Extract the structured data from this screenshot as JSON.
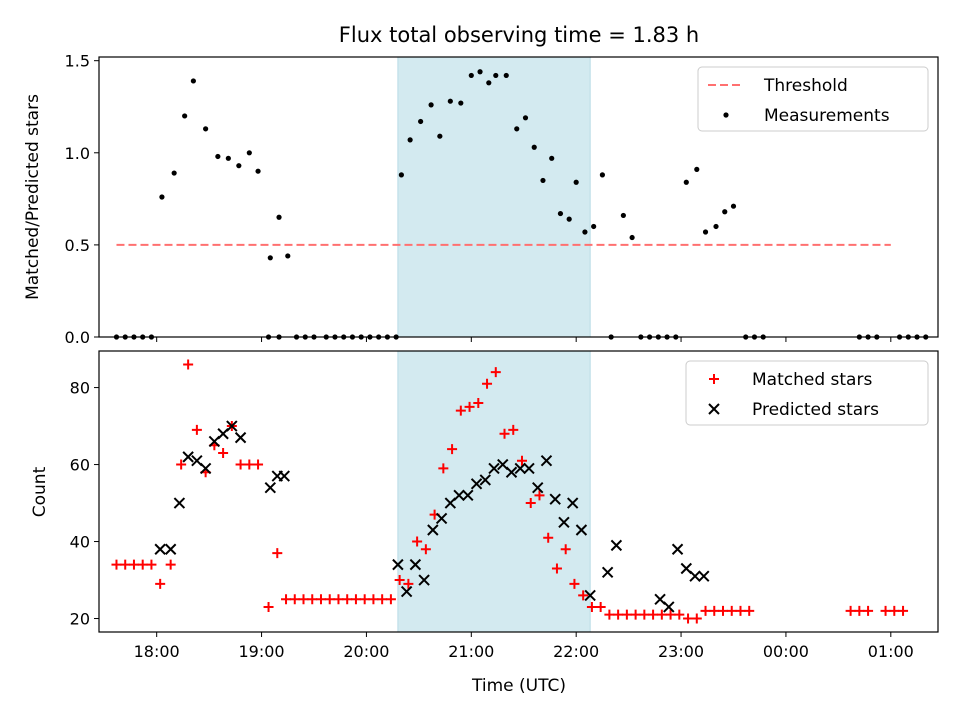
{
  "chart_data": [
    {
      "type": "scatter",
      "title": "Flux total observing time = 1.83 h",
      "xlabel": "",
      "ylabel": "Matched/Predicted stars",
      "xlim": [
        "17:27",
        "01:27"
      ],
      "ylim": [
        0,
        1.52
      ],
      "yticks": [
        "0.0",
        "0.5",
        "1.0",
        "1.5"
      ],
      "highlight_span": [
        "20:18",
        "22:08"
      ],
      "highlight_color": "#d3eaf0",
      "legend_position": "top-right",
      "series": [
        {
          "name": "Threshold",
          "kind": "dashed-line",
          "color": "#ff7070",
          "points": [
            [
              "17:37",
              0.5
            ],
            [
              "01:00",
              0.5
            ]
          ]
        },
        {
          "name": "Measurements",
          "kind": "dot",
          "color": "#000000",
          "points": [
            [
              "17:37",
              0
            ],
            [
              "17:42",
              0
            ],
            [
              "17:47",
              0
            ],
            [
              "17:52",
              0
            ],
            [
              "17:57",
              0
            ],
            [
              "18:03",
              0.76
            ],
            [
              "18:10",
              0.89
            ],
            [
              "18:16",
              1.2
            ],
            [
              "18:21",
              1.39
            ],
            [
              "18:28",
              1.13
            ],
            [
              "18:35",
              0.98
            ],
            [
              "18:41",
              0.97
            ],
            [
              "18:47",
              0.93
            ],
            [
              "18:53",
              1.0
            ],
            [
              "18:58",
              0.9
            ],
            [
              "19:04",
              0
            ],
            [
              "19:10",
              0
            ],
            [
              "19:05",
              0.43
            ],
            [
              "19:10",
              0.65
            ],
            [
              "19:15",
              0.44
            ],
            [
              "19:20",
              0
            ],
            [
              "19:25",
              0
            ],
            [
              "19:30",
              0
            ],
            [
              "19:37",
              0
            ],
            [
              "19:42",
              0
            ],
            [
              "19:47",
              0
            ],
            [
              "19:52",
              0
            ],
            [
              "19:57",
              0
            ],
            [
              "20:02",
              0
            ],
            [
              "20:07",
              0
            ],
            [
              "20:12",
              0
            ],
            [
              "20:17",
              0
            ],
            [
              "20:20",
              0.88
            ],
            [
              "20:25",
              1.07
            ],
            [
              "20:31",
              1.17
            ],
            [
              "20:37",
              1.26
            ],
            [
              "20:42",
              1.09
            ],
            [
              "20:48",
              1.28
            ],
            [
              "20:54",
              1.27
            ],
            [
              "21:00",
              1.42
            ],
            [
              "21:05",
              1.44
            ],
            [
              "21:10",
              1.38
            ],
            [
              "21:14",
              1.42
            ],
            [
              "21:20",
              1.42
            ],
            [
              "21:26",
              1.13
            ],
            [
              "21:31",
              1.19
            ],
            [
              "21:36",
              1.03
            ],
            [
              "21:41",
              0.85
            ],
            [
              "21:46",
              0.97
            ],
            [
              "21:51",
              0.67
            ],
            [
              "21:56",
              0.64
            ],
            [
              "22:00",
              0.84
            ],
            [
              "22:05",
              0.57
            ],
            [
              "22:10",
              0.6
            ],
            [
              "22:15",
              0.88
            ],
            [
              "22:20",
              0
            ],
            [
              "22:27",
              0.66
            ],
            [
              "22:32",
              0.54
            ],
            [
              "22:37",
              0
            ],
            [
              "22:42",
              0
            ],
            [
              "22:47",
              0
            ],
            [
              "22:52",
              0
            ],
            [
              "22:57",
              0
            ],
            [
              "23:03",
              0.84
            ],
            [
              "23:09",
              0.91
            ],
            [
              "23:14",
              0.57
            ],
            [
              "23:20",
              0.6
            ],
            [
              "23:25",
              0.68
            ],
            [
              "23:30",
              0.71
            ],
            [
              "23:37",
              0
            ],
            [
              "23:42",
              0
            ],
            [
              "23:47",
              0
            ],
            [
              "00:42",
              0
            ],
            [
              "00:47",
              0
            ],
            [
              "00:52",
              0
            ],
            [
              "01:05",
              0
            ],
            [
              "01:10",
              0
            ],
            [
              "01:15",
              0
            ],
            [
              "01:20",
              0
            ]
          ]
        }
      ]
    },
    {
      "type": "scatter",
      "title": "",
      "xlabel": "Time (UTC)",
      "ylabel": "Count",
      "xlim": [
        "17:27",
        "01:27"
      ],
      "ylim": [
        16.5,
        89.5
      ],
      "yticks": [
        "20",
        "40",
        "60",
        "80"
      ],
      "xticks": [
        "18:00",
        "19:00",
        "20:00",
        "21:00",
        "22:00",
        "23:00",
        "00:00",
        "01:00"
      ],
      "highlight_span": [
        "20:18",
        "22:08"
      ],
      "highlight_color": "#d3eaf0",
      "legend_position": "top-right",
      "series": [
        {
          "name": "Matched stars",
          "kind": "plus",
          "color": "#ff0000",
          "points": [
            [
              "17:37",
              34
            ],
            [
              "17:42",
              34
            ],
            [
              "17:47",
              34
            ],
            [
              "17:52",
              34
            ],
            [
              "17:57",
              34
            ],
            [
              "18:02",
              29
            ],
            [
              "18:08",
              34
            ],
            [
              "18:14",
              60
            ],
            [
              "18:18",
              86
            ],
            [
              "18:23",
              69
            ],
            [
              "18:28",
              58
            ],
            [
              "18:33",
              65
            ],
            [
              "18:38",
              63
            ],
            [
              "18:43",
              70
            ],
            [
              "18:48",
              60
            ],
            [
              "18:53",
              60
            ],
            [
              "18:58",
              60
            ],
            [
              "19:04",
              23
            ],
            [
              "19:09",
              37
            ],
            [
              "19:14",
              25
            ],
            [
              "19:19",
              25
            ],
            [
              "19:24",
              25
            ],
            [
              "19:29",
              25
            ],
            [
              "19:34",
              25
            ],
            [
              "19:39",
              25
            ],
            [
              "19:44",
              25
            ],
            [
              "19:49",
              25
            ],
            [
              "19:54",
              25
            ],
            [
              "19:59",
              25
            ],
            [
              "20:04",
              25
            ],
            [
              "20:09",
              25
            ],
            [
              "20:14",
              25
            ],
            [
              "20:19",
              30
            ],
            [
              "20:24",
              29
            ],
            [
              "20:29",
              40
            ],
            [
              "20:34",
              38
            ],
            [
              "20:39",
              47
            ],
            [
              "20:44",
              59
            ],
            [
              "20:49",
              64
            ],
            [
              "20:54",
              74
            ],
            [
              "20:59",
              75
            ],
            [
              "21:04",
              76
            ],
            [
              "21:09",
              81
            ],
            [
              "21:14",
              84
            ],
            [
              "21:19",
              68
            ],
            [
              "21:24",
              69
            ],
            [
              "21:29",
              61
            ],
            [
              "21:34",
              50
            ],
            [
              "21:39",
              52
            ],
            [
              "21:44",
              41
            ],
            [
              "21:49",
              33
            ],
            [
              "21:54",
              38
            ],
            [
              "21:59",
              29
            ],
            [
              "22:04",
              26
            ],
            [
              "22:09",
              23
            ],
            [
              "22:14",
              23
            ],
            [
              "22:19",
              21
            ],
            [
              "22:24",
              21
            ],
            [
              "22:29",
              21
            ],
            [
              "22:34",
              21
            ],
            [
              "22:39",
              21
            ],
            [
              "22:44",
              21
            ],
            [
              "22:49",
              21
            ],
            [
              "22:54",
              21
            ],
            [
              "22:59",
              21
            ],
            [
              "23:04",
              20
            ],
            [
              "23:09",
              20
            ],
            [
              "23:14",
              22
            ],
            [
              "23:19",
              22
            ],
            [
              "23:24",
              22
            ],
            [
              "23:29",
              22
            ],
            [
              "23:34",
              22
            ],
            [
              "23:39",
              22
            ],
            [
              "00:37",
              22
            ],
            [
              "00:42",
              22
            ],
            [
              "00:47",
              22
            ],
            [
              "00:57",
              22
            ],
            [
              "01:02",
              22
            ],
            [
              "01:07",
              22
            ]
          ]
        },
        {
          "name": "Predicted stars",
          "kind": "x",
          "color": "#000000",
          "points": [
            [
              "18:02",
              38
            ],
            [
              "18:08",
              38
            ],
            [
              "18:13",
              50
            ],
            [
              "18:18",
              62
            ],
            [
              "18:23",
              61
            ],
            [
              "18:28",
              59
            ],
            [
              "18:33",
              66
            ],
            [
              "18:38",
              68
            ],
            [
              "18:43",
              70
            ],
            [
              "18:48",
              67
            ],
            [
              "19:05",
              54
            ],
            [
              "19:09",
              57
            ],
            [
              "19:13",
              57
            ],
            [
              "20:18",
              34
            ],
            [
              "20:23",
              27
            ],
            [
              "20:28",
              34
            ],
            [
              "20:33",
              30
            ],
            [
              "20:38",
              43
            ],
            [
              "20:43",
              46
            ],
            [
              "20:48",
              50
            ],
            [
              "20:53",
              52
            ],
            [
              "20:58",
              52
            ],
            [
              "21:03",
              55
            ],
            [
              "21:08",
              56
            ],
            [
              "21:13",
              59
            ],
            [
              "21:18",
              60
            ],
            [
              "21:23",
              58
            ],
            [
              "21:28",
              59
            ],
            [
              "21:33",
              59
            ],
            [
              "21:38",
              54
            ],
            [
              "21:43",
              61
            ],
            [
              "21:48",
              51
            ],
            [
              "21:53",
              45
            ],
            [
              "21:58",
              50
            ],
            [
              "22:03",
              43
            ],
            [
              "22:08",
              26
            ],
            [
              "22:18",
              32
            ],
            [
              "22:23",
              39
            ],
            [
              "22:48",
              25
            ],
            [
              "22:53",
              23
            ],
            [
              "22:58",
              38
            ],
            [
              "23:03",
              33
            ],
            [
              "23:08",
              31
            ],
            [
              "23:13",
              31
            ]
          ]
        }
      ]
    }
  ]
}
